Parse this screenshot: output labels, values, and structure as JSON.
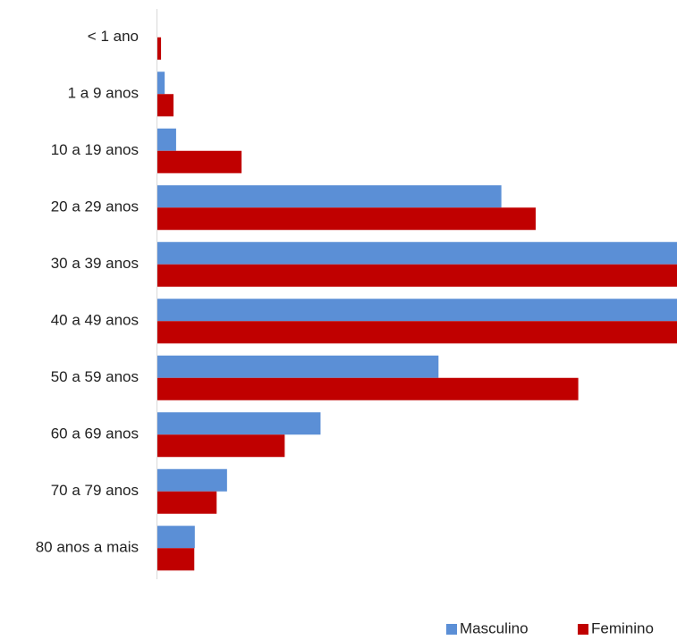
{
  "chart_data": {
    "type": "bar",
    "orientation": "horizontal",
    "title": "",
    "xlabel": "",
    "ylabel": "",
    "xlim": [
      0,
      100
    ],
    "grid": false,
    "legend_position": "bottom-right",
    "categories": [
      "< 1 ano",
      "1 a 9 anos",
      "10 a 19 anos",
      "20 a 29 anos",
      "30 a 39 anos",
      "40 a 49 anos",
      "50 a 59 anos",
      "60 a 69 anos",
      "70 a 79 anos",
      "80 anos a mais"
    ],
    "series": [
      {
        "name": "Masculino",
        "color": "#5b8fd6",
        "values": [
          0,
          1.4,
          3.6,
          66.2,
          100,
          100,
          54.1,
          31.4,
          13.4,
          7.2
        ]
      },
      {
        "name": "Feminino",
        "color": "#c00000",
        "values": [
          0.7,
          3.1,
          16.2,
          72.8,
          100,
          100,
          81.0,
          24.5,
          11.4,
          7.1
        ]
      }
    ]
  }
}
